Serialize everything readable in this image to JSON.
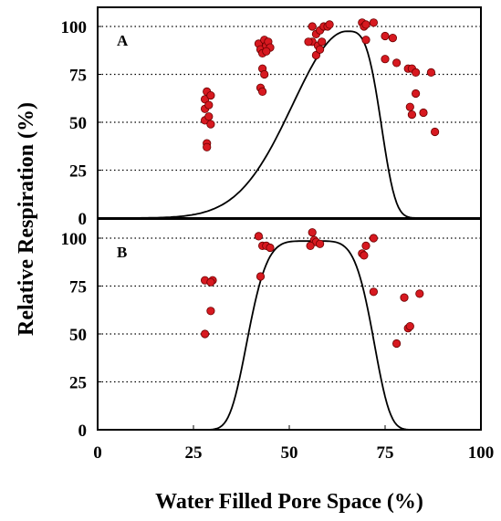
{
  "chart_data": {
    "type": "scatter",
    "xlabel": "Water Filled Pore Space (%)",
    "ylabel": "Relative Respiration (%)",
    "xlim": [
      0,
      100
    ],
    "x_ticks": [
      "0",
      "25",
      "50",
      "75",
      "100"
    ],
    "grid": "dotted horizontal",
    "colors": {
      "points": "#d71920",
      "point_edge": "#6b0000",
      "curve": "#000000"
    },
    "panels": [
      {
        "label": "A",
        "ylim": [
          0,
          110
        ],
        "y_ticks": [
          "0",
          "25",
          "50",
          "75",
          "100"
        ],
        "points": [
          {
            "x": 28,
            "y": 62
          },
          {
            "x": 28,
            "y": 57
          },
          {
            "x": 28,
            "y": 51
          },
          {
            "x": 28.5,
            "y": 66
          },
          {
            "x": 29,
            "y": 59
          },
          {
            "x": 29,
            "y": 53
          },
          {
            "x": 29.5,
            "y": 49
          },
          {
            "x": 29.5,
            "y": 64
          },
          {
            "x": 28.5,
            "y": 39
          },
          {
            "x": 28.5,
            "y": 37
          },
          {
            "x": 42,
            "y": 91
          },
          {
            "x": 42.5,
            "y": 88
          },
          {
            "x": 43,
            "y": 86
          },
          {
            "x": 43.5,
            "y": 93
          },
          {
            "x": 44,
            "y": 90
          },
          {
            "x": 44.5,
            "y": 92
          },
          {
            "x": 45,
            "y": 89
          },
          {
            "x": 43,
            "y": 78
          },
          {
            "x": 43.5,
            "y": 75
          },
          {
            "x": 42.5,
            "y": 68
          },
          {
            "x": 43,
            "y": 66
          },
          {
            "x": 44,
            "y": 87
          },
          {
            "x": 56,
            "y": 100
          },
          {
            "x": 56,
            "y": 92
          },
          {
            "x": 57,
            "y": 96
          },
          {
            "x": 57.5,
            "y": 90
          },
          {
            "x": 58,
            "y": 98
          },
          {
            "x": 58.5,
            "y": 92
          },
          {
            "x": 59,
            "y": 100
          },
          {
            "x": 60,
            "y": 100
          },
          {
            "x": 60.5,
            "y": 101
          },
          {
            "x": 57,
            "y": 85
          },
          {
            "x": 55,
            "y": 92
          },
          {
            "x": 58,
            "y": 88
          },
          {
            "x": 69,
            "y": 102
          },
          {
            "x": 69.5,
            "y": 100
          },
          {
            "x": 70,
            "y": 101
          },
          {
            "x": 72,
            "y": 102
          },
          {
            "x": 70,
            "y": 93
          },
          {
            "x": 75,
            "y": 95
          },
          {
            "x": 77,
            "y": 94
          },
          {
            "x": 75,
            "y": 83
          },
          {
            "x": 78,
            "y": 81
          },
          {
            "x": 81,
            "y": 78
          },
          {
            "x": 82,
            "y": 78
          },
          {
            "x": 83,
            "y": 76
          },
          {
            "x": 87,
            "y": 76
          },
          {
            "x": 81.5,
            "y": 58
          },
          {
            "x": 82,
            "y": 54
          },
          {
            "x": 85,
            "y": 55
          },
          {
            "x": 83,
            "y": 65
          },
          {
            "x": 88,
            "y": 45
          }
        ]
      },
      {
        "label": "B",
        "ylim": [
          0,
          110
        ],
        "y_ticks": [
          "0",
          "25",
          "50",
          "75",
          "100"
        ],
        "points": [
          {
            "x": 28,
            "y": 78
          },
          {
            "x": 30,
            "y": 78
          },
          {
            "x": 29.5,
            "y": 77
          },
          {
            "x": 29.5,
            "y": 62
          },
          {
            "x": 28,
            "y": 50
          },
          {
            "x": 42,
            "y": 101
          },
          {
            "x": 43,
            "y": 96
          },
          {
            "x": 44,
            "y": 96
          },
          {
            "x": 45,
            "y": 95
          },
          {
            "x": 42.5,
            "y": 80
          },
          {
            "x": 56,
            "y": 103
          },
          {
            "x": 56.5,
            "y": 99
          },
          {
            "x": 57,
            "y": 98
          },
          {
            "x": 58,
            "y": 97
          },
          {
            "x": 55.5,
            "y": 96
          },
          {
            "x": 70,
            "y": 96
          },
          {
            "x": 69,
            "y": 92
          },
          {
            "x": 69.5,
            "y": 91
          },
          {
            "x": 72,
            "y": 100
          },
          {
            "x": 72,
            "y": 72
          },
          {
            "x": 78,
            "y": 45
          },
          {
            "x": 80,
            "y": 69
          },
          {
            "x": 84,
            "y": 71
          },
          {
            "x": 81,
            "y": 53
          },
          {
            "x": 81.5,
            "y": 54
          }
        ]
      }
    ]
  }
}
